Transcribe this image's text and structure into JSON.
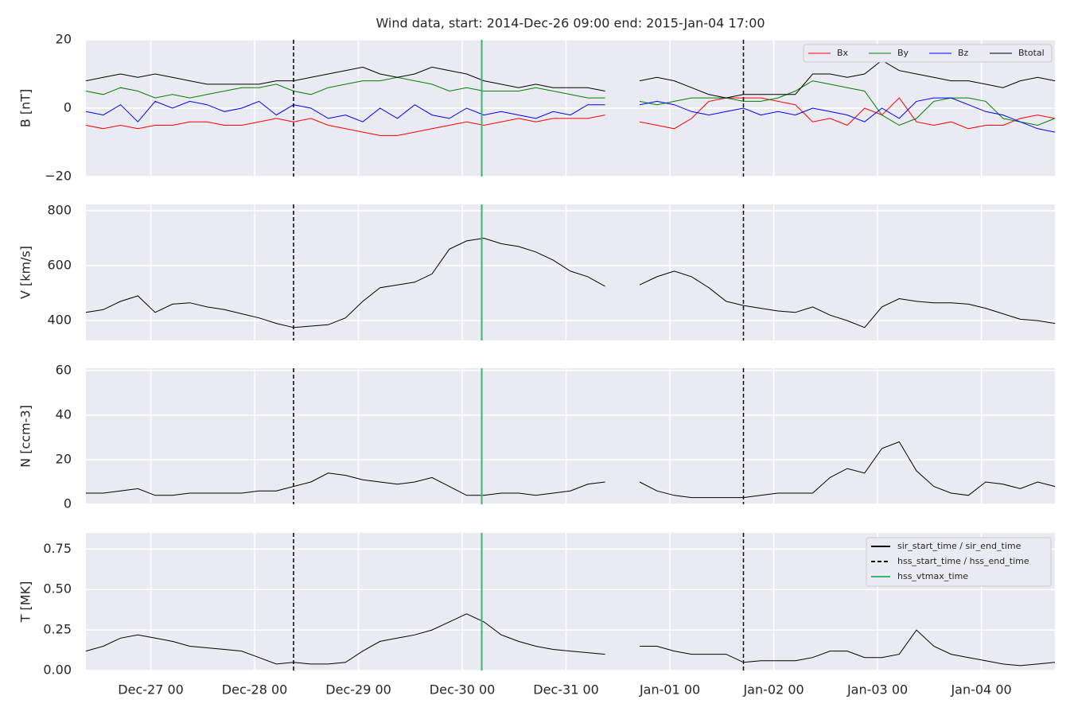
{
  "chart_data": {
    "type": "line",
    "title": "Wind data, start: 2014-Dec-26 09:00  end: 2015-Jan-04 17:00",
    "x": [
      "2014-12-26 09:00",
      "2014-12-26 13:00",
      "2014-12-26 17:00",
      "2014-12-26 21:00",
      "2014-12-27 01:00",
      "2014-12-27 05:00",
      "2014-12-27 09:00",
      "2014-12-27 13:00",
      "2014-12-27 17:00",
      "2014-12-27 21:00",
      "2014-12-28 01:00",
      "2014-12-28 05:00",
      "2014-12-28 09:00",
      "2014-12-28 13:00",
      "2014-12-28 17:00",
      "2014-12-28 21:00",
      "2014-12-29 01:00",
      "2014-12-29 05:00",
      "2014-12-29 09:00",
      "2014-12-29 13:00",
      "2014-12-29 17:00",
      "2014-12-29 21:00",
      "2014-12-30 01:00",
      "2014-12-30 05:00",
      "2014-12-30 09:00",
      "2014-12-30 13:00",
      "2014-12-30 17:00",
      "2014-12-30 21:00",
      "2014-12-31 01:00",
      "2014-12-31 05:00",
      "2014-12-31 09:00",
      "2014-12-31 13:00",
      "2014-12-31 17:00",
      "2014-12-31 21:00",
      "2015-01-01 01:00",
      "2015-01-01 05:00",
      "2015-01-01 09:00",
      "2015-01-01 13:00",
      "2015-01-01 17:00",
      "2015-01-01 21:00",
      "2015-01-02 01:00",
      "2015-01-02 05:00",
      "2015-01-02 09:00",
      "2015-01-02 13:00",
      "2015-01-02 17:00",
      "2015-01-02 21:00",
      "2015-01-03 01:00",
      "2015-01-03 05:00",
      "2015-01-03 09:00",
      "2015-01-03 13:00",
      "2015-01-03 17:00",
      "2015-01-03 21:00",
      "2015-01-04 01:00",
      "2015-01-04 05:00",
      "2015-01-04 09:00",
      "2015-01-04 13:00",
      "2015-01-04 17:00"
    ],
    "xlim": [
      "2014-12-26 09:00",
      "2015-01-04 17:00"
    ],
    "xticks": [
      {
        "value": "2014-12-27 00:00",
        "label": "Dec-27 00"
      },
      {
        "value": "2014-12-28 00:00",
        "label": "Dec-28 00"
      },
      {
        "value": "2014-12-29 00:00",
        "label": "Dec-29 00"
      },
      {
        "value": "2014-12-30 00:00",
        "label": "Dec-30 00"
      },
      {
        "value": "2014-12-31 00:00",
        "label": "Dec-31 00"
      },
      {
        "value": "2015-01-01 00:00",
        "label": "Jan-01 00"
      },
      {
        "value": "2015-01-02 00:00",
        "label": "Jan-02 00"
      },
      {
        "value": "2015-01-03 00:00",
        "label": "Jan-03 00"
      },
      {
        "value": "2015-01-04 00:00",
        "label": "Jan-04 00"
      }
    ],
    "grid": true,
    "panels": [
      {
        "ylabel": "B [nT]",
        "ylim": [
          -20,
          20
        ],
        "yticks": [
          {
            "value": -20,
            "label": "−20"
          },
          0,
          20
        ],
        "legend": "upper right",
        "series": [
          {
            "name": "Bx",
            "color": "#ff0000",
            "values": [
              -5,
              -6,
              -5,
              -6,
              -5,
              -5,
              -4,
              -4,
              -5,
              -5,
              -4,
              -3,
              -4,
              -3,
              -5,
              -6,
              -7,
              -8,
              -8,
              -7,
              -6,
              -5,
              -4,
              -5,
              -4,
              -3,
              -4,
              -3,
              -3,
              -3,
              -2,
              null,
              -4,
              -5,
              -6,
              -3,
              2,
              3,
              3,
              3,
              2,
              1,
              -4,
              -3,
              -5,
              0,
              -2,
              3,
              -4,
              -5,
              -4,
              -6,
              -5,
              -5,
              -3,
              -2,
              -3
            ]
          },
          {
            "name": "By",
            "color": "#008000",
            "values": [
              5,
              4,
              6,
              5,
              3,
              4,
              3,
              4,
              5,
              6,
              6,
              7,
              5,
              4,
              6,
              7,
              8,
              8,
              9,
              8,
              7,
              5,
              6,
              5,
              5,
              5,
              6,
              5,
              4,
              3,
              3,
              null,
              2,
              1,
              2,
              3,
              3,
              3,
              2,
              2,
              3,
              5,
              8,
              7,
              6,
              5,
              -2,
              -5,
              -3,
              2,
              3,
              3,
              2,
              -3,
              -4,
              -5,
              -3
            ]
          },
          {
            "name": "Bz",
            "color": "#0000ff",
            "values": [
              -1,
              -2,
              1,
              -4,
              2,
              0,
              2,
              1,
              -1,
              0,
              2,
              -2,
              1,
              0,
              -3,
              -2,
              -4,
              0,
              -3,
              1,
              -2,
              -3,
              0,
              -2,
              -1,
              -2,
              -3,
              -1,
              -2,
              1,
              1,
              null,
              1,
              2,
              1,
              -1,
              -2,
              -1,
              0,
              -2,
              -1,
              -2,
              0,
              -1,
              -2,
              -4,
              0,
              -3,
              2,
              3,
              3,
              1,
              -1,
              -2,
              -4,
              -6,
              -7
            ]
          },
          {
            "name": "Btotal",
            "color": "#000000",
            "values": [
              8,
              9,
              10,
              9,
              10,
              9,
              8,
              7,
              7,
              7,
              7,
              8,
              8,
              9,
              10,
              11,
              12,
              10,
              9,
              10,
              12,
              11,
              10,
              8,
              7,
              6,
              7,
              6,
              6,
              6,
              5,
              null,
              8,
              9,
              8,
              6,
              4,
              3,
              4,
              4,
              4,
              4,
              10,
              10,
              9,
              10,
              14,
              11,
              10,
              9,
              8,
              8,
              7,
              6,
              8,
              9,
              8
            ]
          }
        ]
      },
      {
        "ylabel": "V [km/s]",
        "ylim": [
          328,
          823
        ],
        "yticks": [
          400,
          600,
          800
        ],
        "series": [
          {
            "color": "#000000",
            "values": [
              430,
              440,
              470,
              490,
              430,
              460,
              465,
              450,
              440,
              425,
              410,
              390,
              375,
              380,
              385,
              410,
              470,
              520,
              530,
              540,
              570,
              660,
              690,
              700,
              680,
              670,
              650,
              620,
              580,
              560,
              525,
              null,
              530,
              560,
              580,
              560,
              520,
              470,
              455,
              445,
              435,
              430,
              450,
              420,
              400,
              375,
              450,
              480,
              470,
              465,
              465,
              460,
              445,
              425,
              405,
              400,
              390
            ]
          }
        ]
      },
      {
        "ylabel": "N [ccm-3]",
        "ylim": [
          0,
          61
        ],
        "yticks": [
          0,
          20,
          40,
          60
        ],
        "series": [
          {
            "color": "#000000",
            "values": [
              5,
              5,
              6,
              7,
              4,
              4,
              5,
              5,
              5,
              5,
              6,
              6,
              8,
              10,
              14,
              13,
              11,
              10,
              9,
              10,
              12,
              8,
              4,
              4,
              5,
              5,
              4,
              5,
              6,
              9,
              10,
              null,
              10,
              6,
              4,
              3,
              3,
              3,
              3,
              4,
              5,
              5,
              5,
              12,
              16,
              14,
              25,
              28,
              15,
              8,
              5,
              4,
              10,
              9,
              7,
              10,
              8
            ]
          }
        ]
      },
      {
        "ylabel": "T [MK]",
        "ylim": [
          0,
          0.85
        ],
        "yticks": [
          {
            "value": 0,
            "label": "0.00"
          },
          {
            "value": 0.25,
            "label": "0.25"
          },
          {
            "value": 0.5,
            "label": "0.50"
          },
          {
            "value": 0.75,
            "label": "0.75"
          }
        ],
        "legend": "upper right",
        "series": [
          {
            "color": "#000000",
            "values": [
              0.12,
              0.15,
              0.2,
              0.22,
              0.2,
              0.18,
              0.15,
              0.14,
              0.13,
              0.12,
              0.08,
              0.04,
              0.05,
              0.04,
              0.04,
              0.05,
              0.12,
              0.18,
              0.2,
              0.22,
              0.25,
              0.3,
              0.35,
              0.3,
              0.22,
              0.18,
              0.15,
              0.13,
              0.12,
              0.11,
              0.1,
              null,
              0.15,
              0.15,
              0.12,
              0.1,
              0.1,
              0.1,
              0.05,
              0.06,
              0.06,
              0.06,
              0.08,
              0.12,
              0.12,
              0.08,
              0.08,
              0.1,
              0.25,
              0.15,
              0.1,
              0.08,
              0.06,
              0.04,
              0.03,
              0.04,
              0.05
            ]
          }
        ]
      }
    ],
    "markers": [
      {
        "label": "sir_start_time / sir_end_time",
        "color": "#000000",
        "style": "solid",
        "times": []
      },
      {
        "label": "hss_start_time / hss_end_time",
        "color": "#000000",
        "style": "dashed",
        "times": [
          "2014-12-28 09:00",
          "2015-01-01 17:00"
        ]
      },
      {
        "label": "hss_vtmax_time",
        "color": "#3cb371",
        "style": "solid",
        "times": [
          "2014-12-30 04:30"
        ]
      }
    ]
  }
}
